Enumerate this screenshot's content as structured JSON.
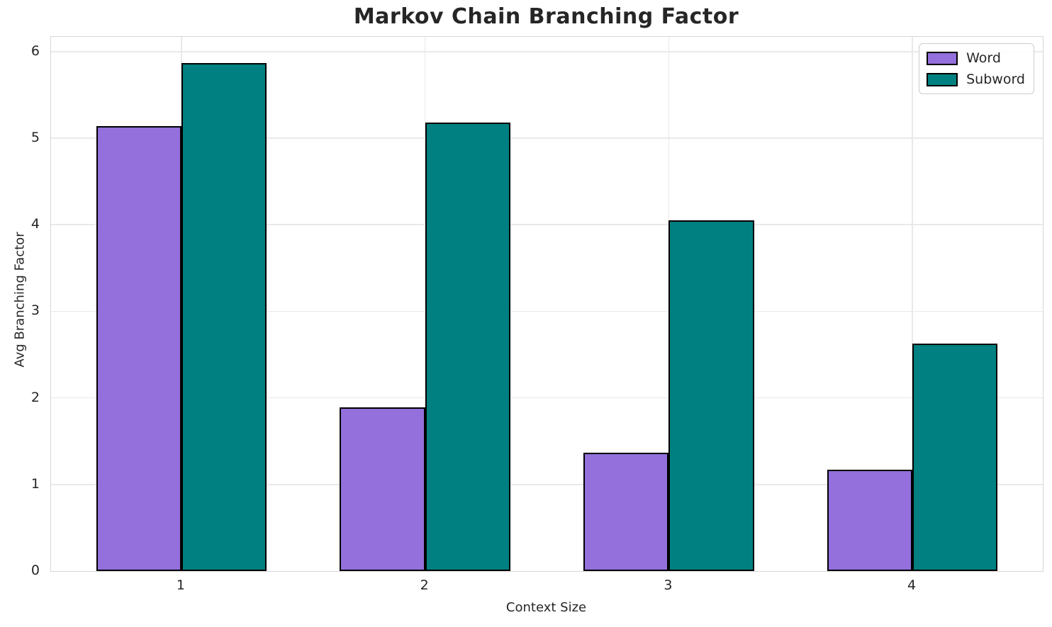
{
  "chart_data": {
    "type": "bar",
    "title": "Markov Chain Branching Factor",
    "xlabel": "Context Size",
    "ylabel": "Avg Branching Factor",
    "categories": [
      "1",
      "2",
      "3",
      "4"
    ],
    "series": [
      {
        "name": "Word",
        "color": "#9370DB",
        "values": [
          5.14,
          1.89,
          1.37,
          1.17
        ]
      },
      {
        "name": "Subword",
        "color": "#008080",
        "values": [
          5.87,
          5.18,
          4.05,
          2.63
        ]
      }
    ],
    "yticks": [
      0,
      1,
      2,
      3,
      4,
      5,
      6
    ],
    "ylim": [
      0,
      6.17
    ],
    "bar_edge_color": "#000000",
    "grid": true,
    "grid_color": "#e9e9e9",
    "legend_position": "upper right",
    "title_color": "#262626",
    "text_color": "#262626"
  }
}
